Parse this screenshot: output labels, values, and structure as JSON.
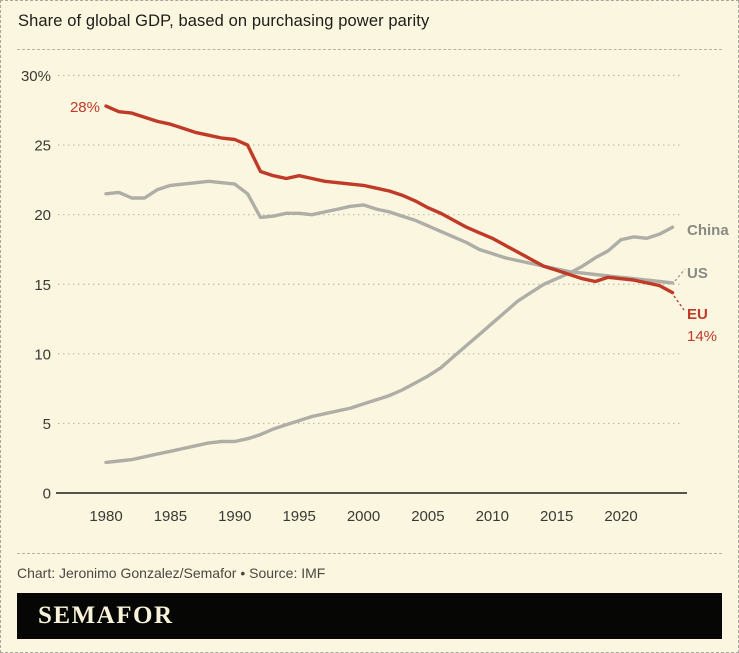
{
  "header": {
    "title": "Share of global GDP, based on purchasing power parity"
  },
  "chart_data": {
    "type": "line",
    "title": "Share of global GDP, based on purchasing power parity",
    "xlabel": "",
    "ylabel": "",
    "xlim": [
      1980,
      2024
    ],
    "ylim": [
      0,
      30
    ],
    "grid": "horizontal-dotted",
    "legend_position": "end-of-line labels at right",
    "x": [
      1980,
      1981,
      1982,
      1983,
      1984,
      1985,
      1986,
      1987,
      1988,
      1989,
      1990,
      1991,
      1992,
      1993,
      1994,
      1995,
      1996,
      1997,
      1998,
      1999,
      2000,
      2001,
      2002,
      2003,
      2004,
      2005,
      2006,
      2007,
      2008,
      2009,
      2010,
      2011,
      2012,
      2013,
      2014,
      2015,
      2016,
      2017,
      2018,
      2019,
      2020,
      2021,
      2022,
      2023,
      2024
    ],
    "xticks": [
      1980,
      1985,
      1990,
      1995,
      2000,
      2005,
      2010,
      2015,
      2020
    ],
    "yticks": [
      0,
      5,
      10,
      15,
      20,
      25,
      30
    ],
    "ytick_labels": [
      "0",
      "5",
      "10",
      "15",
      "20",
      "25",
      "30%"
    ],
    "series": [
      {
        "name": "US",
        "color": "#aeaea7",
        "values": [
          21.5,
          21.6,
          21.2,
          21.2,
          21.8,
          22.1,
          22.2,
          22.3,
          22.4,
          22.3,
          22.2,
          21.5,
          19.8,
          19.9,
          20.1,
          20.1,
          20.0,
          20.2,
          20.4,
          20.6,
          20.7,
          20.4,
          20.2,
          19.9,
          19.6,
          19.2,
          18.8,
          18.4,
          18.0,
          17.5,
          17.2,
          16.9,
          16.7,
          16.5,
          16.3,
          16.1,
          15.9,
          15.8,
          15.7,
          15.6,
          15.5,
          15.4,
          15.3,
          15.2,
          15.1
        ]
      },
      {
        "name": "China",
        "color": "#aeaea7",
        "values": [
          2.2,
          2.3,
          2.4,
          2.6,
          2.8,
          3.0,
          3.2,
          3.4,
          3.6,
          3.7,
          3.7,
          3.9,
          4.2,
          4.6,
          4.9,
          5.2,
          5.5,
          5.7,
          5.9,
          6.1,
          6.4,
          6.7,
          7.0,
          7.4,
          7.9,
          8.4,
          9.0,
          9.8,
          10.6,
          11.4,
          12.2,
          13.0,
          13.8,
          14.4,
          15.0,
          15.4,
          15.8,
          16.3,
          16.9,
          17.4,
          18.2,
          18.4,
          18.3,
          18.6,
          19.1
        ]
      },
      {
        "name": "EU",
        "color": "#c03a28",
        "values": [
          27.8,
          27.4,
          27.3,
          27.0,
          26.7,
          26.5,
          26.2,
          25.9,
          25.7,
          25.5,
          25.4,
          25.0,
          23.1,
          22.8,
          22.6,
          22.8,
          22.6,
          22.4,
          22.3,
          22.2,
          22.1,
          21.9,
          21.7,
          21.4,
          21.0,
          20.5,
          20.1,
          19.6,
          19.1,
          18.7,
          18.3,
          17.8,
          17.3,
          16.8,
          16.3,
          16.0,
          15.7,
          15.4,
          15.2,
          15.5,
          15.4,
          15.3,
          15.1,
          14.9,
          14.4
        ]
      }
    ],
    "annotations": {
      "eu_start_label": "28%",
      "eu_end_label": "14%"
    }
  },
  "footer": {
    "credit": "Chart: Jeronimo Gonzalez/Semafor • Source: IMF",
    "logo_text": "SEMAFOR"
  },
  "colors": {
    "background": "#faf6df",
    "eu_red": "#c03a28",
    "line_gray": "#aeaea7",
    "end_label_gray": "#8a8a84",
    "tick_text": "#3a3a34",
    "axis_line": "#1e1e1c",
    "gridline": "#bcbbad",
    "bar_black": "#060604",
    "logo_cream": "#f7f2d9"
  }
}
